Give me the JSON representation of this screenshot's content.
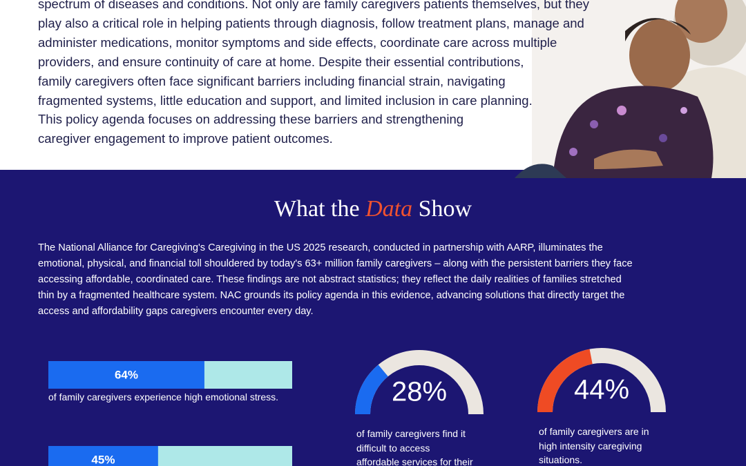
{
  "intro": {
    "lines": [
      "spectrum of diseases and conditions. Not only are family caregivers patients themselves, but they",
      "play also a critical role in helping patients through diagnosis, follow treatment plans, manage and",
      "administer medications, monitor symptoms and side effects, coordinate care across multiple",
      "providers, and ensure continuity of care at home. Despite their essential contributions,",
      "family caregivers often face significant barriers including financial strain, navigating",
      "fragmented systems, little education and support, and limited inclusion in care planning.",
      "This policy agenda focuses on addressing these barriers and strengthening",
      "caregiver engagement to improve patient outcomes."
    ]
  },
  "data_section": {
    "title": {
      "before": "What the ",
      "emphasis": "Data",
      "after": " Show"
    },
    "paragraph_lines": [
      "The National Alliance for Caregiving's Caregiving in the US 2025 research, conducted in partnership with AARP, illuminates the",
      "emotional, physical, and financial toll shouldered by today's 63+ million family caregivers – along with the persistent barriers they face",
      "accessing affordable, coordinated care. These findings are not abstract statistics; they reflect the daily realities of families stretched",
      "thin by a fragmented healthcare system. NAC grounds its policy agenda in this evidence, advancing solutions that directly target the",
      "access and affordability gaps caregivers encounter every day."
    ]
  },
  "bars": [
    {
      "value": 64,
      "label": "64%",
      "caption": "of family caregivers experience high emotional stress."
    },
    {
      "value": 45,
      "label": "45%"
    }
  ],
  "gauges": [
    {
      "value": 28,
      "label": "28%",
      "caption_lines": [
        "of family caregivers find it",
        "difficult to access",
        "affordable services for their"
      ]
    },
    {
      "value": 44,
      "label": "44%",
      "caption_lines": [
        "of family caregivers are in",
        "high intensity caregiving",
        "situations."
      ]
    }
  ]
}
